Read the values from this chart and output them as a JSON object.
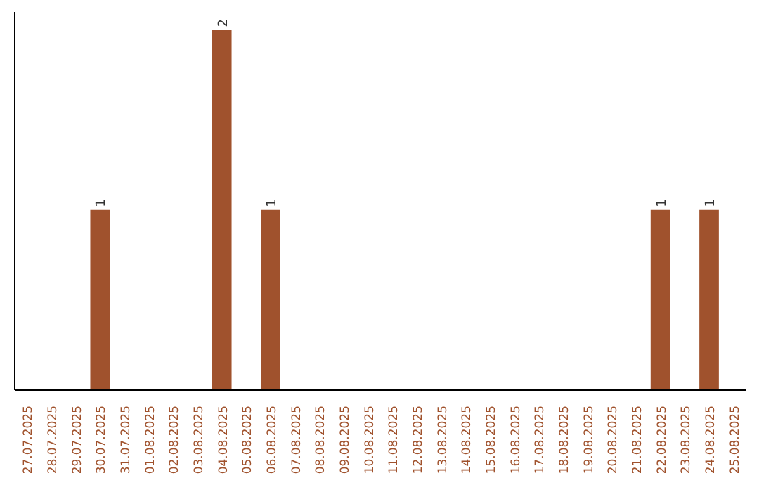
{
  "chart_data": {
    "type": "bar",
    "categories": [
      "27.07.2025",
      "28.07.2025",
      "29.07.2025",
      "30.07.2025",
      "31.07.2025",
      "01.08.2025",
      "02.08.2025",
      "03.08.2025",
      "04.08.2025",
      "05.08.2025",
      "06.08.2025",
      "07.08.2025",
      "08.08.2025",
      "09.08.2025",
      "10.08.2025",
      "11.08.2025",
      "12.08.2025",
      "13.08.2025",
      "14.08.2025",
      "15.08.2025",
      "16.08.2025",
      "17.08.2025",
      "18.08.2025",
      "19.08.2025",
      "20.08.2025",
      "21.08.2025",
      "22.08.2025",
      "23.08.2025",
      "24.08.2025",
      "25.08.2025"
    ],
    "values": [
      0,
      0,
      0,
      1,
      0,
      0,
      0,
      0,
      2,
      0,
      1,
      0,
      0,
      0,
      0,
      0,
      0,
      0,
      0,
      0,
      0,
      0,
      0,
      0,
      0,
      0,
      1,
      0,
      1,
      0
    ],
    "value_labels": [
      null,
      null,
      null,
      "1",
      null,
      null,
      null,
      null,
      "2",
      null,
      "1",
      null,
      null,
      null,
      null,
      null,
      null,
      null,
      null,
      null,
      null,
      null,
      null,
      null,
      null,
      null,
      "1",
      null,
      "1",
      null
    ],
    "color": "#a0522d",
    "tick_labels": "x",
    "grid": false
  }
}
